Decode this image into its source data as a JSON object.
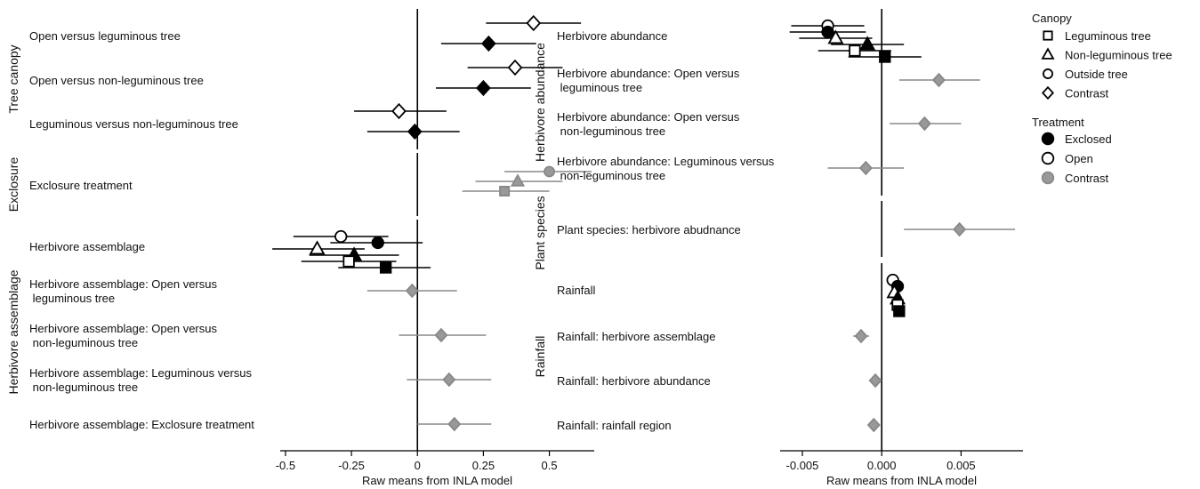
{
  "colors": {
    "exclosed": "#000000",
    "open": "#ffffff",
    "contrast": "#999999",
    "contrast_line": "#888888",
    "ink": "#000000"
  },
  "legend": {
    "canopy_title": "Canopy",
    "canopy_items": [
      {
        "label": "Leguminous tree",
        "marker": "square"
      },
      {
        "label": "Non-leguminous tree",
        "marker": "triangle"
      },
      {
        "label": "Outside tree",
        "marker": "circle"
      },
      {
        "label": "Contrast",
        "marker": "diamond"
      }
    ],
    "treatment_title": "Treatment",
    "treatment_items": [
      {
        "label": "Exclosed",
        "fill": "exclosed"
      },
      {
        "label": "Open",
        "fill": "open"
      },
      {
        "label": "Contrast",
        "fill": "contrast"
      }
    ]
  },
  "chart_data": [
    {
      "type": "scatter",
      "subtype": "forest-plot",
      "title": "",
      "xlabel": "Raw means from INLA model",
      "ylabel": "",
      "xlim": [
        -0.52,
        0.67
      ],
      "xticks": [
        -0.5,
        -0.25,
        0,
        0.25,
        0.5
      ],
      "xtick_labels": [
        "-0.5",
        "-0.25",
        "0",
        "0.25",
        "0.5"
      ],
      "groups": [
        {
          "label": "Tree canopy",
          "rows": [
            {
              "label": [
                "Open versus leguminous tree"
              ],
              "points": [
                {
                  "marker": "diamond",
                  "fill": "open",
                  "value": 0.44,
                  "low": 0.26,
                  "high": 0.62
                },
                {
                  "marker": "diamond",
                  "fill": "exclosed",
                  "value": 0.27,
                  "low": 0.09,
                  "high": 0.45
                }
              ]
            },
            {
              "label": [
                "Open versus non-leguminous tree"
              ],
              "points": [
                {
                  "marker": "diamond",
                  "fill": "open",
                  "value": 0.37,
                  "low": 0.19,
                  "high": 0.55
                },
                {
                  "marker": "diamond",
                  "fill": "exclosed",
                  "value": 0.25,
                  "low": 0.07,
                  "high": 0.43
                }
              ]
            },
            {
              "label": [
                "Leguminous versus non-leguminous tree"
              ],
              "points": [
                {
                  "marker": "diamond",
                  "fill": "open",
                  "value": -0.07,
                  "low": -0.24,
                  "high": 0.11
                },
                {
                  "marker": "diamond",
                  "fill": "exclosed",
                  "value": -0.01,
                  "low": -0.19,
                  "high": 0.16
                }
              ]
            }
          ]
        },
        {
          "label": "Exclosure",
          "rows": [
            {
              "label": [
                "Exclosure treatment"
              ],
              "points": [
                {
                  "marker": "circle",
                  "fill": "contrast",
                  "value": 0.5,
                  "low": 0.33,
                  "high": 0.66
                },
                {
                  "marker": "triangle",
                  "fill": "contrast",
                  "value": 0.38,
                  "low": 0.22,
                  "high": 0.55
                },
                {
                  "marker": "square",
                  "fill": "contrast",
                  "value": 0.33,
                  "low": 0.17,
                  "high": 0.5
                }
              ]
            }
          ]
        },
        {
          "label": "Herbivore assemblage",
          "rows": [
            {
              "label": [
                "Herbivore assemblage"
              ],
              "points": [
                {
                  "marker": "circle",
                  "fill": "open",
                  "value": -0.29,
                  "low": -0.47,
                  "high": -0.11
                },
                {
                  "marker": "circle",
                  "fill": "exclosed",
                  "value": -0.15,
                  "low": -0.33,
                  "high": 0.02
                },
                {
                  "marker": "triangle",
                  "fill": "open",
                  "value": -0.38,
                  "low": -0.55,
                  "high": -0.2
                },
                {
                  "marker": "triangle",
                  "fill": "exclosed",
                  "value": -0.24,
                  "low": -0.41,
                  "high": -0.07
                },
                {
                  "marker": "square",
                  "fill": "open",
                  "value": -0.26,
                  "low": -0.44,
                  "high": -0.08
                },
                {
                  "marker": "square",
                  "fill": "exclosed",
                  "value": -0.12,
                  "low": -0.3,
                  "high": 0.05
                }
              ]
            },
            {
              "label": [
                "Herbivore assemblage: Open versus",
                " leguminous tree"
              ],
              "points": [
                {
                  "marker": "diamond",
                  "fill": "contrast",
                  "value": -0.02,
                  "low": -0.19,
                  "high": 0.15
                }
              ]
            },
            {
              "label": [
                "Herbivore assemblage: Open versus",
                " non-leguminous tree"
              ],
              "points": [
                {
                  "marker": "diamond",
                  "fill": "contrast",
                  "value": 0.09,
                  "low": -0.07,
                  "high": 0.26
                }
              ]
            },
            {
              "label": [
                "Herbivore assemblage: Leguminous versus",
                " non-leguminous tree"
              ],
              "points": [
                {
                  "marker": "diamond",
                  "fill": "contrast",
                  "value": 0.12,
                  "low": -0.04,
                  "high": 0.28
                }
              ]
            },
            {
              "label": [
                "Herbivore assemblage: Exclosure treatment"
              ],
              "points": [
                {
                  "marker": "diamond",
                  "fill": "contrast",
                  "value": 0.14,
                  "low": 0.0,
                  "high": 0.28
                }
              ]
            }
          ]
        }
      ]
    },
    {
      "type": "scatter",
      "subtype": "forest-plot",
      "title": "",
      "xlabel": "Raw means from INLA model",
      "ylabel": "",
      "xlim": [
        -0.0064,
        0.0089
      ],
      "xticks": [
        -0.005,
        0,
        0.005
      ],
      "xtick_labels": [
        "-0.005",
        "0.000",
        "0.005"
      ],
      "groups": [
        {
          "label": "Herbivore abundance",
          "rows": [
            {
              "label": [
                "Herbivore abundance"
              ],
              "points": [
                {
                  "marker": "circle",
                  "fill": "open",
                  "value": -0.0034,
                  "low": -0.0057,
                  "high": -0.0011
                },
                {
                  "marker": "circle",
                  "fill": "exclosed",
                  "value": -0.0034,
                  "low": -0.0058,
                  "high": -0.001
                },
                {
                  "marker": "triangle",
                  "fill": "open",
                  "value": -0.0029,
                  "low": -0.0052,
                  "high": -0.0006
                },
                {
                  "marker": "triangle",
                  "fill": "exclosed",
                  "value": -0.0009,
                  "low": -0.0032,
                  "high": 0.0014
                },
                {
                  "marker": "square",
                  "fill": "open",
                  "value": -0.0017,
                  "low": -0.004,
                  "high": 0.0006
                },
                {
                  "marker": "square",
                  "fill": "exclosed",
                  "value": 0.0002,
                  "low": -0.0021,
                  "high": 0.0025
                }
              ]
            },
            {
              "label": [
                "Herbivore abundance: Open versus",
                " leguminous tree"
              ],
              "points": [
                {
                  "marker": "diamond",
                  "fill": "contrast",
                  "value": 0.0036,
                  "low": 0.0011,
                  "high": 0.0062
                }
              ]
            },
            {
              "label": [
                "Herbivore abundance: Open versus",
                " non-leguminous tree"
              ],
              "points": [
                {
                  "marker": "diamond",
                  "fill": "contrast",
                  "value": 0.0027,
                  "low": 0.0005,
                  "high": 0.005
                }
              ]
            },
            {
              "label": [
                "Herbivore abundance: Leguminous versus",
                " non-leguminous tree"
              ],
              "points": [
                {
                  "marker": "diamond",
                  "fill": "contrast",
                  "value": -0.001,
                  "low": -0.0034,
                  "high": 0.0014
                }
              ]
            }
          ]
        },
        {
          "label": "Plant species",
          "rows": [
            {
              "label": [
                "Plant species: herbivore abudnance"
              ],
              "points": [
                {
                  "marker": "diamond",
                  "fill": "contrast",
                  "value": 0.0049,
                  "low": 0.0014,
                  "high": 0.0084
                }
              ]
            }
          ]
        },
        {
          "label": "Rainfall",
          "rows": [
            {
              "label": [
                "Rainfall"
              ],
              "points": [
                {
                  "marker": "circle",
                  "fill": "open",
                  "value": 0.0007,
                  "low": 0.0005,
                  "high": 0.0009
                },
                {
                  "marker": "circle",
                  "fill": "exclosed",
                  "value": 0.001,
                  "low": 0.0008,
                  "high": 0.0012
                },
                {
                  "marker": "triangle",
                  "fill": "open",
                  "value": 0.0008,
                  "low": 0.0006,
                  "high": 0.001
                },
                {
                  "marker": "triangle",
                  "fill": "exclosed",
                  "value": 0.001,
                  "low": 0.0008,
                  "high": 0.0012
                },
                {
                  "marker": "square",
                  "fill": "open",
                  "value": 0.001,
                  "low": 0.0008,
                  "high": 0.0012
                },
                {
                  "marker": "square",
                  "fill": "exclosed",
                  "value": 0.0011,
                  "low": 0.0009,
                  "high": 0.0013
                }
              ]
            },
            {
              "label": [
                "Rainfall: herbivore assemblage"
              ],
              "points": [
                {
                  "marker": "diamond",
                  "fill": "contrast",
                  "value": -0.0013,
                  "low": -0.0018,
                  "high": -0.0008
                }
              ]
            },
            {
              "label": [
                "Rainfall: herbivore abundance"
              ],
              "points": [
                {
                  "marker": "diamond",
                  "fill": "contrast",
                  "value": -0.0004,
                  "low": -0.0006,
                  "high": -0.0002
                }
              ]
            },
            {
              "label": [
                "Rainfall: rainfall region"
              ],
              "points": [
                {
                  "marker": "diamond",
                  "fill": "contrast",
                  "value": -0.0005,
                  "low": -0.0008,
                  "high": -0.0002
                }
              ]
            }
          ]
        }
      ]
    }
  ]
}
